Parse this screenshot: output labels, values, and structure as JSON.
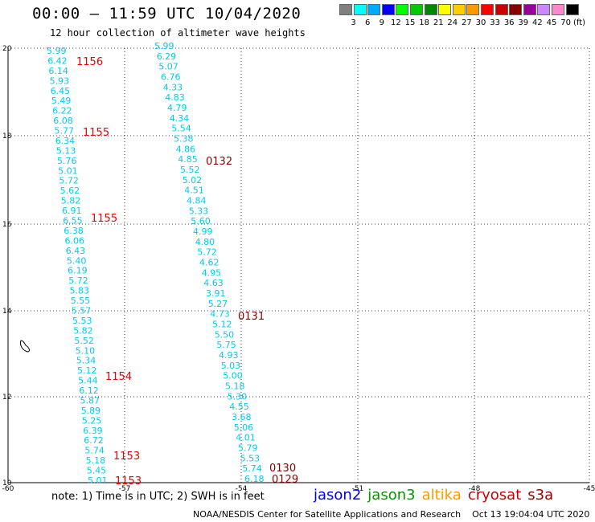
{
  "title": "00:00 – 11:59 UTC 10/04/2020",
  "subtitle": "12 hour collection of altimeter wave heights",
  "colorbar": {
    "colors": [
      "#808080",
      "#00ffff",
      "#00aaff",
      "#0000ff",
      "#00ff00",
      "#00cc00",
      "#008800",
      "#ffff00",
      "#ffcc00",
      "#ff9900",
      "#ff0000",
      "#cc0000",
      "#880000",
      "#990099",
      "#cc88ff",
      "#ff88cc",
      "#000000"
    ],
    "labels": [
      "3",
      "6",
      "9",
      "12",
      "15",
      "18",
      "21",
      "24",
      "27",
      "30",
      "33",
      "36",
      "39",
      "42",
      "45",
      "70"
    ],
    "unit": "(ft)"
  },
  "axes": {
    "lon_ticks": [
      "-60",
      "-57",
      "-54",
      "-51",
      "-48",
      "-45"
    ],
    "lat_ticks": [
      "20",
      "18",
      "16",
      "14",
      "12",
      "10"
    ]
  },
  "track_left": {
    "color": "#00ccee",
    "values": [
      "5.99",
      "6.42",
      "6.14",
      "5.93",
      "6.45",
      "5.49",
      "6.22",
      "6.08",
      "5.77",
      "6.34",
      "5.13",
      "5.76",
      "5.01",
      "5.72",
      "5.62",
      "5.82",
      "6.91",
      "6.55",
      "6.38",
      "6.06",
      "6.43",
      "5.40",
      "6.19",
      "5.72",
      "5.83",
      "5.55",
      "5.57",
      "5.53",
      "5.82",
      "5.52",
      "5.10",
      "5.34",
      "5.12",
      "5.44",
      "6.12",
      "5.87",
      "5.89",
      "5.25",
      "6.39",
      "6.72",
      "5.74",
      "5.18",
      "5.45",
      "5.01"
    ]
  },
  "track_right": {
    "color": "#00ccee",
    "values": [
      "5.99",
      "6.29",
      "5.07",
      "6.76",
      "4.33",
      "4.83",
      "4.79",
      "4.34",
      "5.54",
      "5.38",
      "4.86",
      "4.85",
      "5.52",
      "5.02",
      "4.51",
      "4.84",
      "5.33",
      "5.60",
      "4.99",
      "4.80",
      "5.72",
      "4.62",
      "4.95",
      "4.63",
      "3.91",
      "5.27",
      "4.73",
      "5.12",
      "5.50",
      "5.75",
      "4.93",
      "5.03",
      "5.00",
      "5.18",
      "5.30",
      "4.55",
      "3.68",
      "5.06",
      "4.01",
      "5.79",
      "5.53",
      "5.74",
      "6.18"
    ]
  },
  "time_labels": [
    {
      "text": "1156",
      "color": "#ee0000"
    },
    {
      "text": "1155",
      "color": "#ee0000"
    },
    {
      "text": "1155",
      "color": "#ee0000"
    },
    {
      "text": "1154",
      "color": "#ee0000"
    },
    {
      "text": "1153",
      "color": "#ee0000"
    },
    {
      "text": "1153",
      "color": "#ee0000"
    },
    {
      "text": "0132",
      "color": "#880000"
    },
    {
      "text": "0131",
      "color": "#880000"
    },
    {
      "text": "0130",
      "color": "#880000"
    },
    {
      "text": "0129",
      "color": "#880000"
    }
  ],
  "note": "note:  1) Time is in UTC;  2) SWH is in feet",
  "legend": [
    {
      "label": "jason2",
      "color": "#0000ee"
    },
    {
      "label": "jason3",
      "color": "#009900"
    },
    {
      "label": "altika",
      "color": "#ff9900"
    },
    {
      "label": "cryosat",
      "color": "#cc0000"
    },
    {
      "label": "s3a",
      "color": "#990000"
    }
  ],
  "credit": "NOAA/NESDIS Center for Satellite Applications and Research    Oct 13 19:04:04 UTC 2020"
}
